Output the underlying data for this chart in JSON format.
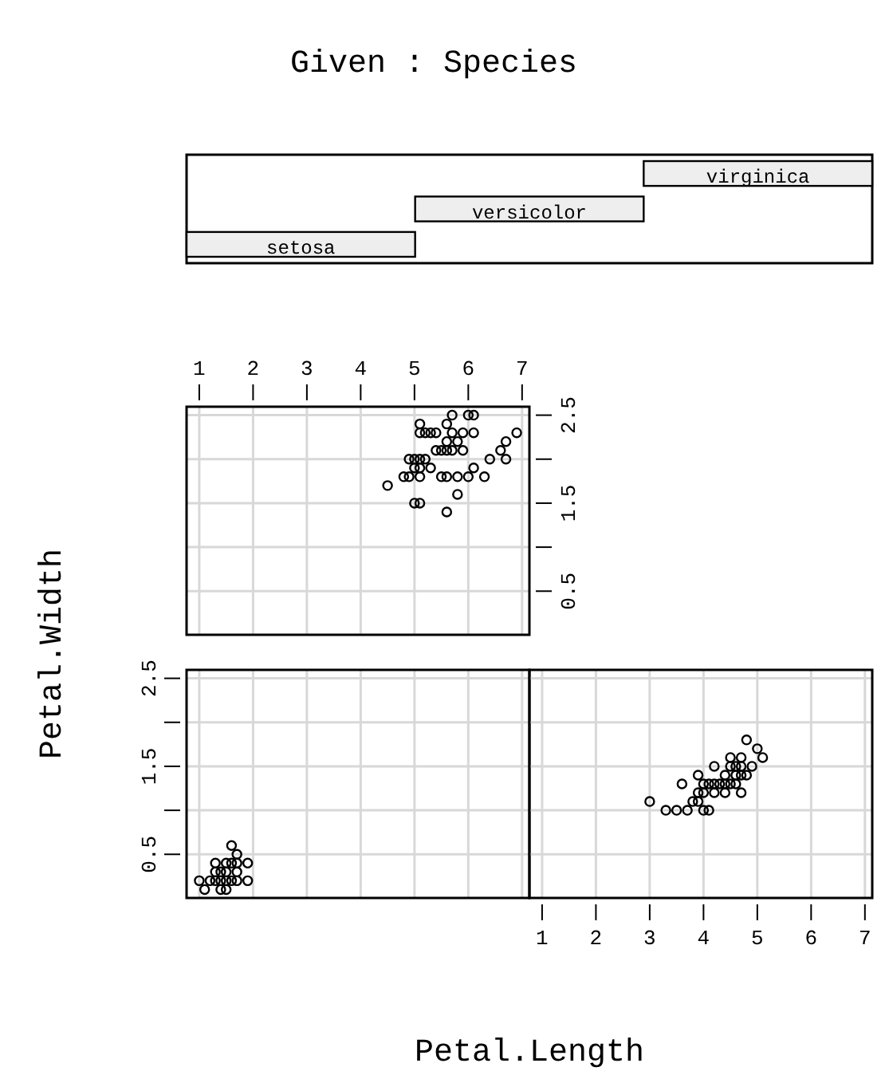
{
  "chart_data": [
    {
      "type": "other",
      "title": "Given : Species",
      "categories": [
        "virginica",
        "versicolor",
        "setosa"
      ]
    },
    {
      "type": "scatter",
      "xlim": [
        0.764,
        7.136
      ],
      "ylim": [
        0.004,
        2.596
      ],
      "xticks": [
        1,
        2,
        3,
        4,
        5,
        6,
        7
      ],
      "yticks": [
        {
          "value": 0.5,
          "label": "0.5"
        },
        {
          "value": 1,
          "label": null
        },
        {
          "value": 1.5,
          "label": "1.5"
        },
        {
          "value": 2,
          "label": null
        },
        {
          "value": 2.5,
          "label": "2.5"
        }
      ],
      "grid": true,
      "marker": "circle",
      "series": [
        {
          "color": "#000000",
          "x": [
            6.0,
            5.1,
            5.9,
            5.6,
            5.8,
            6.6,
            4.5,
            6.3,
            5.8,
            6.1,
            5.1,
            5.3,
            5.5,
            5.0,
            5.1,
            5.3,
            5.5,
            6.7,
            6.9,
            5.0,
            5.7,
            4.9,
            6.7,
            4.9,
            5.7,
            6.0,
            4.8,
            5.6,
            5.8,
            6.1,
            6.4,
            5.6,
            5.1,
            5.6,
            6.1,
            5.6,
            5.4,
            5.1,
            5.9,
            5.7,
            5.2,
            5.0,
            5.2,
            5.4,
            5.1
          ],
          "values": [
            2.5,
            1.9,
            2.1,
            1.8,
            2.2,
            2.1,
            1.7,
            1.8,
            1.8,
            2.5,
            2.0,
            1.9,
            2.1,
            2.0,
            2.4,
            2.3,
            1.8,
            2.2,
            2.3,
            1.5,
            2.3,
            2.0,
            2.0,
            1.8,
            2.1,
            1.8,
            1.8,
            2.1,
            1.6,
            1.9,
            2.0,
            2.2,
            1.5,
            1.4,
            2.3,
            2.4,
            2.1,
            2.3,
            2.3,
            2.5,
            2.3,
            1.9,
            2.0,
            2.3,
            1.8
          ]
        }
      ]
    },
    {
      "type": "scatter",
      "xlim": [
        0.764,
        7.136
      ],
      "ylim": [
        0.004,
        2.596
      ],
      "xticks": [
        1,
        2,
        3,
        4,
        5,
        6,
        7
      ],
      "yticks": [
        {
          "value": 0.5,
          "label": "0.5"
        },
        {
          "value": 1,
          "label": null
        },
        {
          "value": 1.5,
          "label": "1.5"
        },
        {
          "value": 2,
          "label": null
        },
        {
          "value": 2.5,
          "label": "2.5"
        }
      ],
      "grid": true,
      "marker": "circle",
      "tick_labels": "y",
      "ylabel": "Petal.Width",
      "series": [
        {
          "color": "#000000",
          "x": [
            1.4,
            1.3,
            1.5,
            1.7,
            1.4,
            1.5,
            1.6,
            1.4,
            1.1,
            1.2,
            1.5,
            1.3,
            1.7,
            1.5,
            1.7,
            1.0,
            1.7,
            1.9,
            1.6,
            1.3,
            1.6,
            1.9
          ],
          "values": [
            0.2,
            0.2,
            0.2,
            0.4,
            0.3,
            0.1,
            0.2,
            0.1,
            0.1,
            0.2,
            0.4,
            0.4,
            0.3,
            0.3,
            0.2,
            0.2,
            0.5,
            0.2,
            0.4,
            0.3,
            0.6,
            0.4
          ]
        }
      ]
    },
    {
      "type": "scatter",
      "xlim": [
        0.764,
        7.136
      ],
      "ylim": [
        0.004,
        2.596
      ],
      "xticks": [
        1,
        2,
        3,
        4,
        5,
        6,
        7
      ],
      "yticks": [
        0.5,
        1,
        1.5,
        2,
        2.5
      ],
      "grid": true,
      "marker": "circle",
      "tick_labels": "x",
      "xlabel": "Petal.Length",
      "series": [
        {
          "color": "#000000",
          "x": [
            4.7,
            4.5,
            4.9,
            4.0,
            4.6,
            4.5,
            4.7,
            3.3,
            4.6,
            3.9,
            3.5,
            4.2,
            4.0,
            3.6,
            4.4,
            4.1,
            3.9,
            4.8,
            4.7,
            4.3,
            4.8,
            5.0,
            3.8,
            3.7,
            3.9,
            5.1,
            4.5,
            4.7,
            4.4,
            4.1,
            4.4,
            4.6,
            4.0,
            4.2,
            4.2,
            3.0
          ],
          "values": [
            1.4,
            1.5,
            1.5,
            1.3,
            1.5,
            1.3,
            1.6,
            1.0,
            1.3,
            1.4,
            1.0,
            1.5,
            1.0,
            1.3,
            1.4,
            1.0,
            1.1,
            1.8,
            1.2,
            1.3,
            1.4,
            1.7,
            1.1,
            1.0,
            1.2,
            1.6,
            1.6,
            1.5,
            1.3,
            1.3,
            1.2,
            1.4,
            1.2,
            1.3,
            1.2,
            1.1
          ]
        }
      ]
    }
  ]
}
